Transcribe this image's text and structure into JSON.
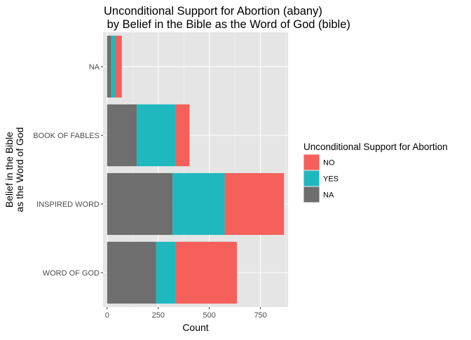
{
  "chart_data": {
    "type": "bar",
    "orientation": "horizontal",
    "stacked": true,
    "title_lines": [
      "Unconditional Support for Abortion (abany)",
      " by Belief in the Bible as the Word of God (bible)"
    ],
    "xlabel": "Count",
    "ylabel_lines": [
      "Belief in the Bible",
      "as the Word of God"
    ],
    "xlim": [
      -20,
      885
    ],
    "x_ticks": [
      0,
      250,
      500,
      750
    ],
    "x_tick_labels": [
      "0",
      "250",
      "500",
      "750"
    ],
    "categories": [
      "WORD OF GOD",
      "INSPIRED WORD",
      "BOOK OF FABLES",
      "NA"
    ],
    "series": [
      {
        "name": "NA",
        "color": "#6e6e6e",
        "values": [
          240,
          320,
          145,
          20
        ]
      },
      {
        "name": "YES",
        "color": "#1fb8bf",
        "values": [
          95,
          255,
          190,
          20
        ]
      },
      {
        "name": "NO",
        "color": "#f5605b",
        "values": [
          300,
          290,
          68,
          32
        ]
      }
    ],
    "legend": {
      "title": "Unconditional Support for Abortion",
      "placement": "right",
      "items": [
        {
          "label": "NO",
          "color": "#f5605b"
        },
        {
          "label": "YES",
          "color": "#1fb8bf"
        },
        {
          "label": "NA",
          "color": "#6e6e6e"
        }
      ]
    },
    "panel_background": "#e5e5e5",
    "grid": true
  }
}
